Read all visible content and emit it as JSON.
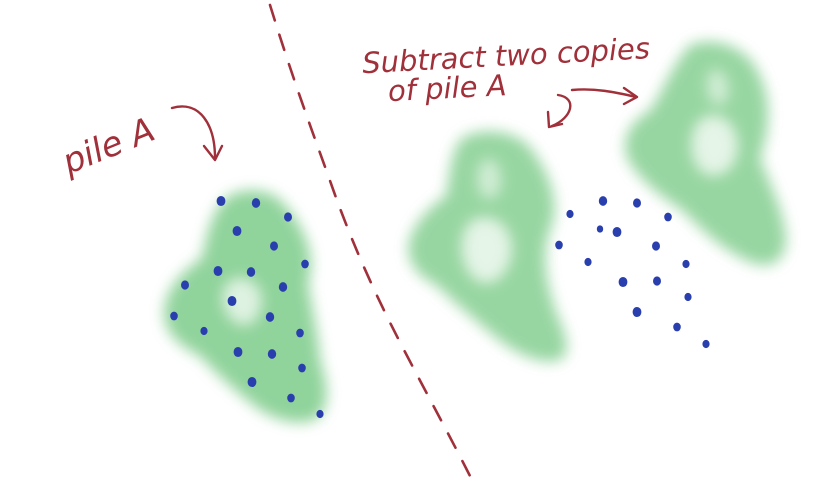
{
  "labels": {
    "pile_a": "pile A",
    "subtract_line1": "Subtract two copies",
    "subtract_line2": "of pile A"
  },
  "counts": {
    "pile_a_dots": 21,
    "right_dots": 16,
    "copies_subtracted": 2
  },
  "colors": {
    "ink": "#a0303a",
    "dot": "#2a3fae",
    "pile": "#6cc57a",
    "background": "#ffffff"
  }
}
